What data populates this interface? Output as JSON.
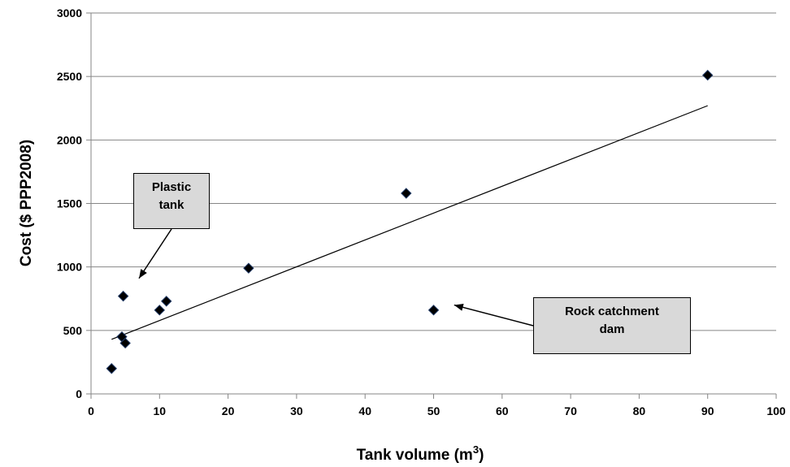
{
  "chart_data": {
    "type": "scatter",
    "title": "",
    "xlabel": "Tank volume (m",
    "xlabel_sup": "3",
    "xlabel_end": ")",
    "ylabel": "Cost ($ PPP2008)",
    "xlim": [
      0,
      100
    ],
    "ylim": [
      0,
      3000
    ],
    "xticks": [
      0,
      10,
      20,
      30,
      40,
      50,
      60,
      70,
      80,
      90,
      100
    ],
    "yticks": [
      0,
      500,
      1000,
      1500,
      2000,
      2500,
      3000
    ],
    "grid": "horizontal",
    "legend": "none",
    "marker": "diamond",
    "marker_color": "#000000",
    "points": [
      {
        "x": 3,
        "y": 200
      },
      {
        "x": 4.5,
        "y": 450
      },
      {
        "x": 5,
        "y": 400
      },
      {
        "x": 4.7,
        "y": 770
      },
      {
        "x": 10,
        "y": 660
      },
      {
        "x": 11,
        "y": 730
      },
      {
        "x": 23,
        "y": 990
      },
      {
        "x": 46,
        "y": 1580
      },
      {
        "x": 50,
        "y": 660
      },
      {
        "x": 90,
        "y": 2510
      }
    ],
    "trendline": {
      "x": [
        3,
        90
      ],
      "y": [
        430,
        2270
      ]
    },
    "annotations": [
      {
        "text_lines": [
          "Plastic",
          "tank"
        ],
        "arrow_to": {
          "x": 7,
          "y": 910
        }
      },
      {
        "text_lines": [
          "Rock catchment",
          "dam"
        ],
        "arrow_to": {
          "x": 53,
          "y": 700
        }
      }
    ]
  }
}
